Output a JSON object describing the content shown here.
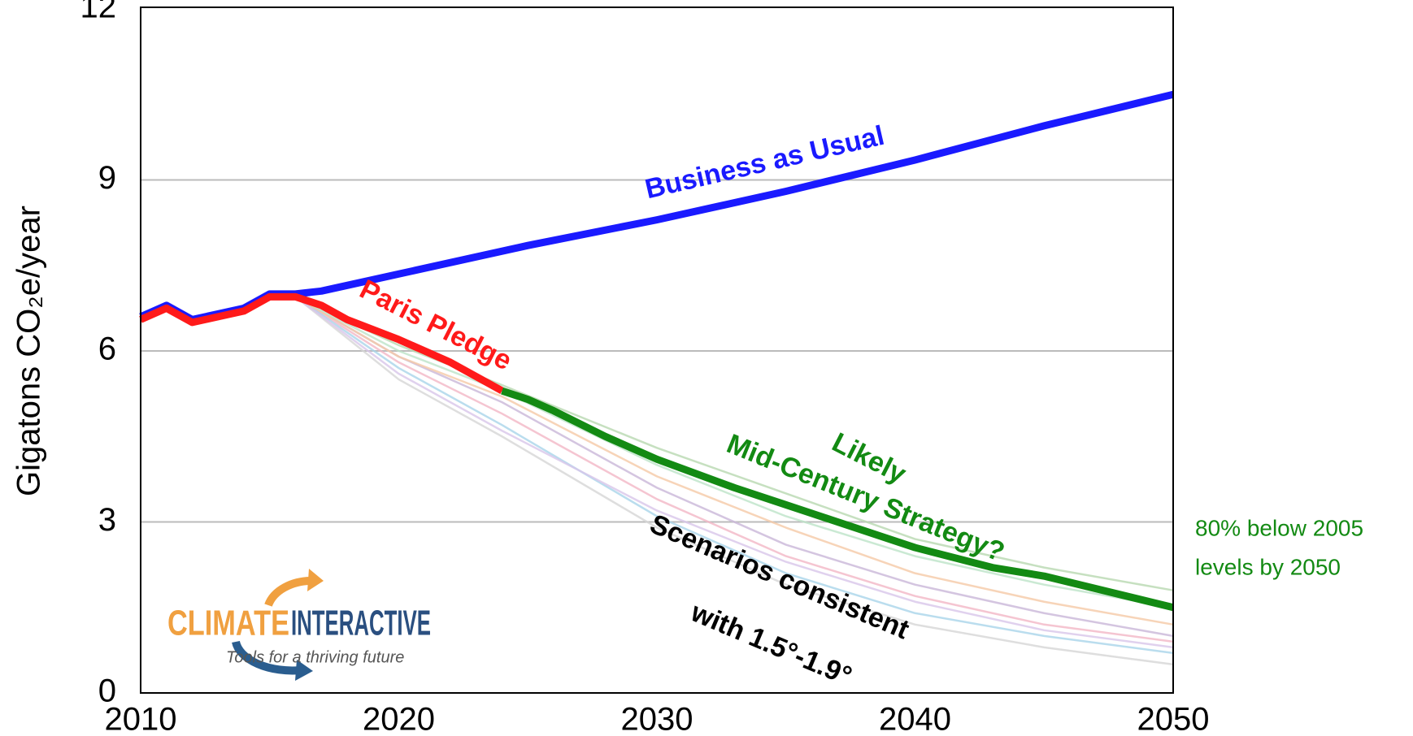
{
  "chart_data": {
    "type": "line",
    "y_label": "Gigatons CO₂e/year",
    "xlim": [
      2010,
      2050
    ],
    "xticks": [
      2010,
      2020,
      2030,
      2040,
      2050
    ],
    "ylim": [
      0,
      12
    ],
    "yticks": [
      0,
      3,
      6,
      9,
      12
    ],
    "grid": true,
    "series": [
      {
        "color": "#b8d8b0",
        "x": [
          2016,
          2020,
          2024,
          2030,
          2035,
          2040,
          2045,
          2050
        ],
        "values": [
          6.95,
          6.1,
          5.4,
          4.3,
          3.5,
          2.7,
          2.2,
          1.8
        ]
      },
      {
        "color": "#c9b7d8",
        "x": [
          2016,
          2020,
          2024,
          2030,
          2035,
          2040,
          2045,
          2050
        ],
        "values": [
          6.95,
          5.9,
          5.1,
          3.6,
          2.6,
          1.9,
          1.4,
          1.0
        ]
      },
      {
        "color": "#f2b6c6",
        "x": [
          2016,
          2020,
          2024,
          2030,
          2035,
          2040,
          2045,
          2050
        ],
        "values": [
          6.95,
          5.8,
          4.9,
          3.4,
          2.4,
          1.7,
          1.2,
          0.9
        ]
      },
      {
        "color": "#a9d4ea",
        "x": [
          2016,
          2020,
          2024,
          2030,
          2035,
          2040,
          2045,
          2050
        ],
        "values": [
          6.95,
          5.7,
          4.7,
          3.1,
          2.1,
          1.4,
          1.0,
          0.7
        ]
      },
      {
        "color": "#d6d6d6",
        "x": [
          2016,
          2020,
          2024,
          2030,
          2035,
          2040,
          2045,
          2050
        ],
        "values": [
          6.95,
          5.5,
          4.5,
          2.9,
          1.9,
          1.2,
          0.8,
          0.5
        ]
      },
      {
        "color": "#f5c9a6",
        "x": [
          2016,
          2020,
          2024,
          2030,
          2035,
          2040,
          2045,
          2050
        ],
        "values": [
          6.95,
          5.9,
          5.2,
          3.8,
          2.9,
          2.1,
          1.6,
          1.2
        ]
      },
      {
        "color": "#bde3c8",
        "x": [
          2016,
          2020,
          2024,
          2030,
          2035,
          2040,
          2045,
          2050
        ],
        "values": [
          6.95,
          6.0,
          5.3,
          4.0,
          3.1,
          2.4,
          1.9,
          1.5
        ]
      },
      {
        "color": "#d8c6ea",
        "x": [
          2016,
          2020,
          2024,
          2030,
          2035,
          2040,
          2045,
          2050
        ],
        "values": [
          6.95,
          5.6,
          4.6,
          3.2,
          2.3,
          1.6,
          1.1,
          0.8
        ]
      },
      {
        "name": "Business as Usual",
        "color": "#1a1aff",
        "x": [
          2010,
          2011,
          2012,
          2013,
          2014,
          2015,
          2016,
          2017,
          2018,
          2020,
          2025,
          2030,
          2035,
          2040,
          2045,
          2050
        ],
        "values": [
          6.6,
          6.8,
          6.55,
          6.65,
          6.75,
          7.0,
          7.0,
          7.05,
          7.15,
          7.35,
          7.85,
          8.3,
          8.8,
          9.35,
          9.95,
          10.5
        ]
      },
      {
        "name": "Paris Pledge",
        "color": "#ff1a1a",
        "x": [
          2010,
          2011,
          2012,
          2013,
          2014,
          2015,
          2016,
          2017,
          2018,
          2020,
          2022,
          2024
        ],
        "values": [
          6.55,
          6.75,
          6.5,
          6.6,
          6.7,
          6.95,
          6.95,
          6.8,
          6.55,
          6.2,
          5.8,
          5.3
        ]
      },
      {
        "name": "Mid-Century Strategy?",
        "color": "#138a13",
        "x": [
          2024,
          2025,
          2026,
          2028,
          2030,
          2033,
          2035,
          2040,
          2043,
          2045,
          2050
        ],
        "values": [
          5.3,
          5.15,
          4.95,
          4.5,
          4.1,
          3.6,
          3.3,
          2.55,
          2.2,
          2.05,
          1.5
        ]
      }
    ],
    "annotations": {
      "likely": "Likely",
      "scenarios_1": "Scenarios consistent",
      "scenarios_2": "with 1.5°-1.9°",
      "target_1": "80% below 2005",
      "target_2": "levels by 2050"
    },
    "logo": {
      "word1": "CLIMATE",
      "word2": "INTERACTIVE",
      "tagline": "Tools for a thriving future"
    }
  }
}
